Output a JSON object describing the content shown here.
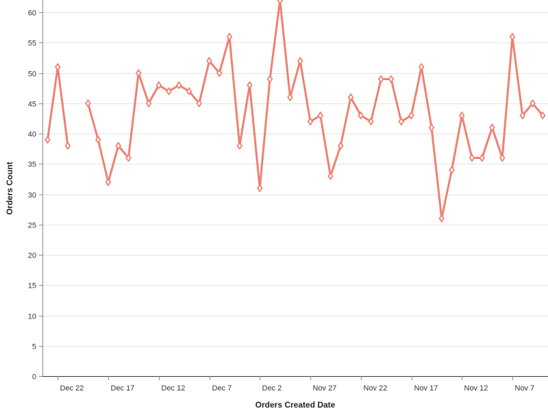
{
  "chart_data": {
    "type": "line",
    "xlabel": "Orders Created Date",
    "ylabel": "Orders Count",
    "x_axis_reversed": true,
    "x_tick_labels": [
      "Dec 22",
      "Dec 17",
      "Dec 12",
      "Dec 7",
      "Dec 2",
      "Nov 27",
      "Nov 22",
      "Nov 17",
      "Nov 12",
      "Nov 7"
    ],
    "y_ticks": [
      0,
      5,
      10,
      15,
      20,
      25,
      30,
      35,
      40,
      45,
      50,
      55,
      60
    ],
    "ylim": [
      0,
      62
    ],
    "grid": "horizontal",
    "legend": "none",
    "series": [
      {
        "color": "#f08070",
        "marker": "diamond",
        "points": [
          {
            "date": "Dec 23",
            "value": 39
          },
          {
            "date": "Dec 22",
            "value": 51
          },
          {
            "date": "Dec 21",
            "value": 38
          },
          {
            "date": "Dec 19",
            "value": 45
          },
          {
            "date": "Dec 18",
            "value": 39
          },
          {
            "date": "Dec 17",
            "value": 32
          },
          {
            "date": "Dec 16",
            "value": 38
          },
          {
            "date": "Dec 15",
            "value": 36
          },
          {
            "date": "Dec 14",
            "value": 50
          },
          {
            "date": "Dec 13",
            "value": 45
          },
          {
            "date": "Dec 12",
            "value": 48
          },
          {
            "date": "Dec 11",
            "value": 47
          },
          {
            "date": "Dec 10",
            "value": 48
          },
          {
            "date": "Dec 9",
            "value": 47
          },
          {
            "date": "Dec 8",
            "value": 45
          },
          {
            "date": "Dec 7",
            "value": 52
          },
          {
            "date": "Dec 6",
            "value": 50
          },
          {
            "date": "Dec 5",
            "value": 56
          },
          {
            "date": "Dec 4",
            "value": 38
          },
          {
            "date": "Dec 3",
            "value": 48
          },
          {
            "date": "Dec 2",
            "value": 31
          },
          {
            "date": "Dec 1",
            "value": 49
          },
          {
            "date": "Nov 30",
            "value": 62
          },
          {
            "date": "Nov 29",
            "value": 46
          },
          {
            "date": "Nov 28",
            "value": 52
          },
          {
            "date": "Nov 27",
            "value": 42
          },
          {
            "date": "Nov 26",
            "value": 43
          },
          {
            "date": "Nov 25",
            "value": 33
          },
          {
            "date": "Nov 24",
            "value": 38
          },
          {
            "date": "Nov 23",
            "value": 46
          },
          {
            "date": "Nov 22",
            "value": 43
          },
          {
            "date": "Nov 21",
            "value": 42
          },
          {
            "date": "Nov 20",
            "value": 49
          },
          {
            "date": "Nov 19",
            "value": 49
          },
          {
            "date": "Nov 18",
            "value": 42
          },
          {
            "date": "Nov 17",
            "value": 43
          },
          {
            "date": "Nov 16",
            "value": 51
          },
          {
            "date": "Nov 15",
            "value": 41
          },
          {
            "date": "Nov 14",
            "value": 26
          },
          {
            "date": "Nov 13",
            "value": 34
          },
          {
            "date": "Nov 12",
            "value": 43
          },
          {
            "date": "Nov 11",
            "value": 36
          },
          {
            "date": "Nov 10",
            "value": 36
          },
          {
            "date": "Nov 9",
            "value": 41
          },
          {
            "date": "Nov 8",
            "value": 36
          },
          {
            "date": "Nov 7",
            "value": 56
          },
          {
            "date": "Nov 6",
            "value": 43
          },
          {
            "date": "Nov 5",
            "value": 45
          },
          {
            "date": "Nov 4",
            "value": 43
          }
        ]
      }
    ]
  }
}
